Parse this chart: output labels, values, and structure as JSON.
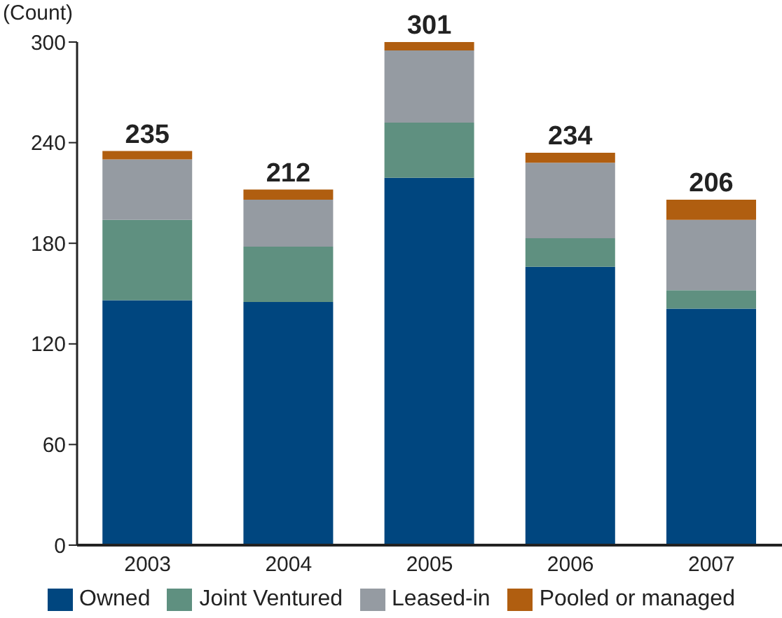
{
  "chart_data": {
    "type": "bar",
    "stacked": true,
    "ylabel": "(Count)",
    "categories": [
      "2003",
      "2004",
      "2005",
      "2006",
      "2007"
    ],
    "series": [
      {
        "name": "Owned",
        "color": "#00467f",
        "values": [
          146,
          145,
          219,
          166,
          141
        ]
      },
      {
        "name": "Joint Ventured",
        "color": "#5f9080",
        "values": [
          48,
          33,
          33,
          17,
          11
        ]
      },
      {
        "name": "Leased-in",
        "color": "#959ba2",
        "values": [
          36,
          28,
          43,
          45,
          42
        ]
      },
      {
        "name": "Pooled or managed",
        "color": "#b05e10",
        "values": [
          5,
          6,
          6,
          6,
          12
        ]
      }
    ],
    "totals": [
      "235",
      "212",
      "301",
      "234",
      "206"
    ],
    "ylim": [
      0,
      300
    ],
    "yticks": [
      0,
      60,
      120,
      180,
      240,
      300
    ],
    "grid": false,
    "legend": "bottom"
  }
}
